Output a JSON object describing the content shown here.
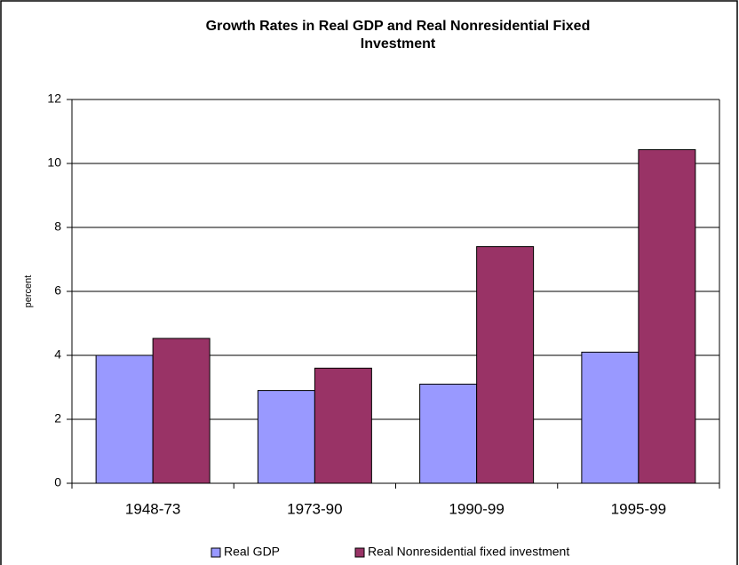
{
  "chart_data": {
    "type": "bar",
    "title": "Growth Rates in Real GDP and Real Nonresidential  Fixed Investment",
    "y_label": "percent",
    "categories": [
      "1948-73",
      "1973-90",
      "1990-99",
      "1995-99"
    ],
    "series": [
      {
        "name": "Real GDP",
        "color": "#9999ff",
        "values": [
          4.0,
          2.9,
          3.1,
          4.1
        ]
      },
      {
        "name": "Real Nonresidential fixed investment",
        "color": "#993366",
        "values": [
          4.53,
          3.6,
          7.4,
          10.43
        ]
      }
    ],
    "ylim": [
      0,
      12
    ],
    "yticks": [
      0,
      2,
      4,
      6,
      8,
      10,
      12
    ],
    "grid": true,
    "legend": "bottom"
  }
}
